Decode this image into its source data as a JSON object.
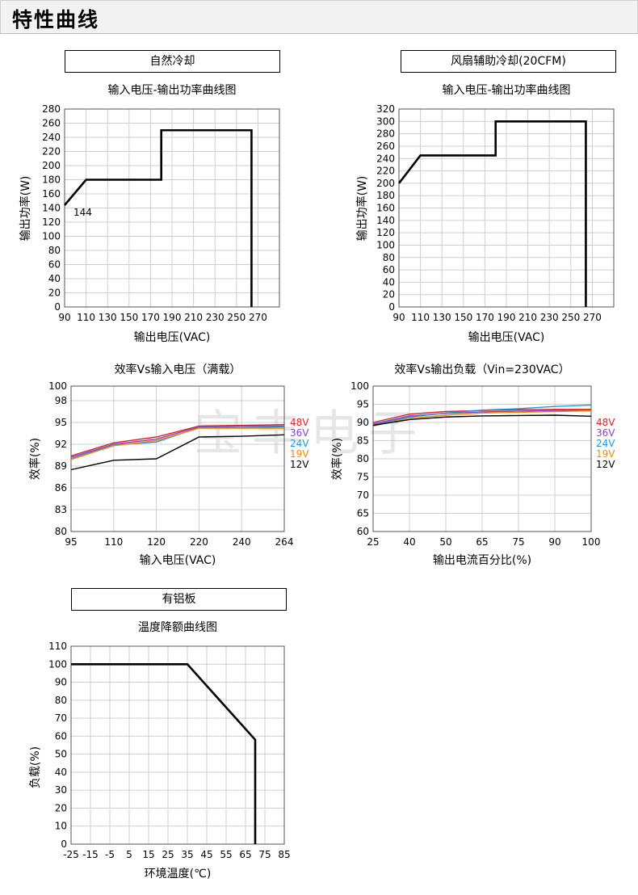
{
  "header": {
    "title": "特性曲线"
  },
  "watermark": "宝丰电子",
  "chart_data": [
    {
      "type": "line",
      "box_label": "自然冷却",
      "title": "输入电压-输出功率曲线图",
      "xlabel": "输出电压(VAC)",
      "ylabel": "输出功率(W)",
      "xlim": [
        90,
        290
      ],
      "ylim": [
        0,
        280
      ],
      "xticks": [
        90,
        110,
        130,
        150,
        170,
        190,
        210,
        230,
        250,
        270
      ],
      "yticks": [
        0,
        20,
        40,
        60,
        80,
        100,
        120,
        140,
        160,
        180,
        200,
        220,
        240,
        260,
        280
      ],
      "grid": true,
      "annotation": "144",
      "series": [
        {
          "color": "#000000",
          "x": [
            90,
            110,
            180,
            180,
            264,
            264
          ],
          "y": [
            144,
            180,
            180,
            250,
            250,
            0
          ]
        }
      ]
    },
    {
      "type": "line",
      "box_label": "风扇辅助冷却(20CFM)",
      "title": "输入电压-输出功率曲线图",
      "xlabel": "输出电压(VAC)",
      "ylabel": "输出功率(W)",
      "xlim": [
        90,
        290
      ],
      "ylim": [
        0,
        320
      ],
      "xticks": [
        90,
        110,
        130,
        150,
        170,
        190,
        210,
        230,
        250,
        270
      ],
      "yticks": [
        0,
        20,
        40,
        60,
        80,
        100,
        120,
        140,
        160,
        180,
        200,
        220,
        240,
        260,
        280,
        300,
        320
      ],
      "grid": true,
      "series": [
        {
          "color": "#000000",
          "x": [
            90,
            110,
            180,
            180,
            264,
            264
          ],
          "y": [
            200,
            245,
            245,
            300,
            300,
            0
          ]
        }
      ]
    },
    {
      "type": "line",
      "title": "效率Vs输入电压（满载）",
      "xlabel": "输入电压(VAC)",
      "ylabel": "效率(%)",
      "categories": [
        "95",
        "110",
        "120",
        "220",
        "240",
        "264"
      ],
      "ylim": [
        80,
        100
      ],
      "yticks": [
        80,
        83,
        86,
        89,
        92,
        95,
        98,
        100
      ],
      "grid": true,
      "series": [
        {
          "name": "48V",
          "color": "#e0202a",
          "values": [
            90.4,
            92.2,
            93.0,
            94.5,
            94.6,
            94.7
          ]
        },
        {
          "name": "36V",
          "color": "#8a3fd1",
          "values": [
            90.2,
            92.0,
            92.7,
            94.4,
            94.5,
            94.5
          ]
        },
        {
          "name": "24V",
          "color": "#1e9bd7",
          "values": [
            90.0,
            91.9,
            92.3,
            94.3,
            94.3,
            94.4
          ]
        },
        {
          "name": "19V",
          "color": "#f08a00",
          "values": [
            89.9,
            91.8,
            92.5,
            94.2,
            94.2,
            94.2
          ]
        },
        {
          "name": "12V",
          "color": "#000000",
          "values": [
            88.5,
            89.8,
            90.0,
            93.0,
            93.1,
            93.3
          ]
        }
      ]
    },
    {
      "type": "line",
      "title": "效率Vs输出负载（Vin=230VAC）",
      "xlabel": "输出电流百分比(%)",
      "ylabel": "效率(%)",
      "categories": [
        "25",
        "40",
        "50",
        "65",
        "75",
        "90",
        "100"
      ],
      "ylim": [
        60,
        100
      ],
      "yticks": [
        60,
        65,
        70,
        75,
        80,
        85,
        90,
        95,
        100
      ],
      "grid": true,
      "series": [
        {
          "name": "48V",
          "color": "#e0202a",
          "values": [
            90.0,
            92.3,
            93.0,
            93.3,
            93.5,
            93.6,
            93.6
          ]
        },
        {
          "name": "36V",
          "color": "#8a3fd1",
          "values": [
            89.6,
            91.8,
            92.5,
            92.9,
            93.1,
            93.3,
            93.4
          ]
        },
        {
          "name": "24V",
          "color": "#1e9bd7",
          "values": [
            89.3,
            91.5,
            92.6,
            93.4,
            93.8,
            94.4,
            94.8
          ]
        },
        {
          "name": "19V",
          "color": "#f08a00",
          "values": [
            89.0,
            91.2,
            92.0,
            92.6,
            92.8,
            93.0,
            93.2
          ]
        },
        {
          "name": "12V",
          "color": "#000000",
          "values": [
            89.2,
            90.8,
            91.5,
            91.8,
            91.9,
            92.0,
            91.7
          ]
        }
      ]
    },
    {
      "type": "line",
      "box_label": "有铝板",
      "title": "温度降额曲线图",
      "xlabel": "环境温度(℃)",
      "ylabel": "负载(%)",
      "xlim": [
        -25,
        85
      ],
      "ylim": [
        0,
        110
      ],
      "xticks": [
        -25,
        -15,
        -5,
        5,
        15,
        25,
        35,
        45,
        55,
        65,
        75,
        85
      ],
      "yticks": [
        0,
        10,
        20,
        30,
        40,
        50,
        60,
        70,
        80,
        90,
        100,
        110
      ],
      "grid": true,
      "series": [
        {
          "color": "#000000",
          "x": [
            -25,
            35,
            70,
            70
          ],
          "y": [
            100,
            100,
            58,
            0
          ]
        }
      ]
    }
  ]
}
